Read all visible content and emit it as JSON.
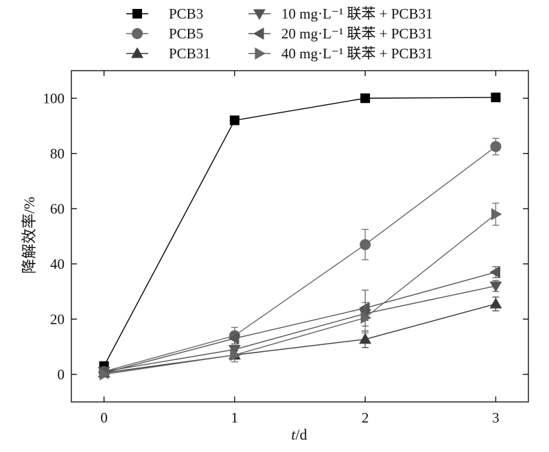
{
  "chart_data": {
    "type": "line",
    "xlabel_italic": "t",
    "xlabel_unit": "/d",
    "ylabel": "降解效率/%",
    "x": [
      0,
      1,
      2,
      3
    ],
    "xlim": [
      -0.25,
      3.25
    ],
    "ylim": [
      -10,
      110
    ],
    "xticks": [
      "0",
      "1",
      "2",
      "3"
    ],
    "yticks": [
      "0",
      "20",
      "40",
      "60",
      "80",
      "100"
    ],
    "grid": false,
    "legend_position": "top",
    "series": [
      {
        "name": "PCB3",
        "marker": "square",
        "color": "#000000",
        "values": [
          3,
          92,
          100,
          100.3
        ],
        "errors": [
          0,
          1,
          0.5,
          0.5
        ]
      },
      {
        "name": "PCB5",
        "marker": "circle",
        "color": "#666666",
        "values": [
          1,
          14,
          47,
          82.5
        ],
        "errors": [
          0,
          3,
          5.5,
          3
        ]
      },
      {
        "name": "PCB31",
        "marker": "triangle-up",
        "color": "#3a3a3a",
        "values": [
          0.5,
          7,
          12.7,
          25.5
        ],
        "errors": [
          0,
          1.5,
          3,
          2.5
        ]
      },
      {
        "name": "10 mg·L⁻¹ 联苯 + PCB31",
        "marker": "triangle-down",
        "color": "#555555",
        "values": [
          1,
          9,
          22,
          32
        ],
        "errors": [
          0,
          1.5,
          2.5,
          2
        ]
      },
      {
        "name": "20 mg·L⁻¹ 联苯 + PCB31",
        "marker": "triangle-left",
        "color": "#555555",
        "values": [
          0.5,
          13,
          24,
          37
        ],
        "errors": [
          0,
          2,
          6.5,
          2
        ]
      },
      {
        "name": "40 mg·L⁻¹ 联苯 + PCB31",
        "marker": "triangle-right",
        "color": "#666666",
        "values": [
          0,
          7,
          20.5,
          58
        ],
        "errors": [
          0,
          2.5,
          5.5,
          4
        ]
      }
    ]
  }
}
